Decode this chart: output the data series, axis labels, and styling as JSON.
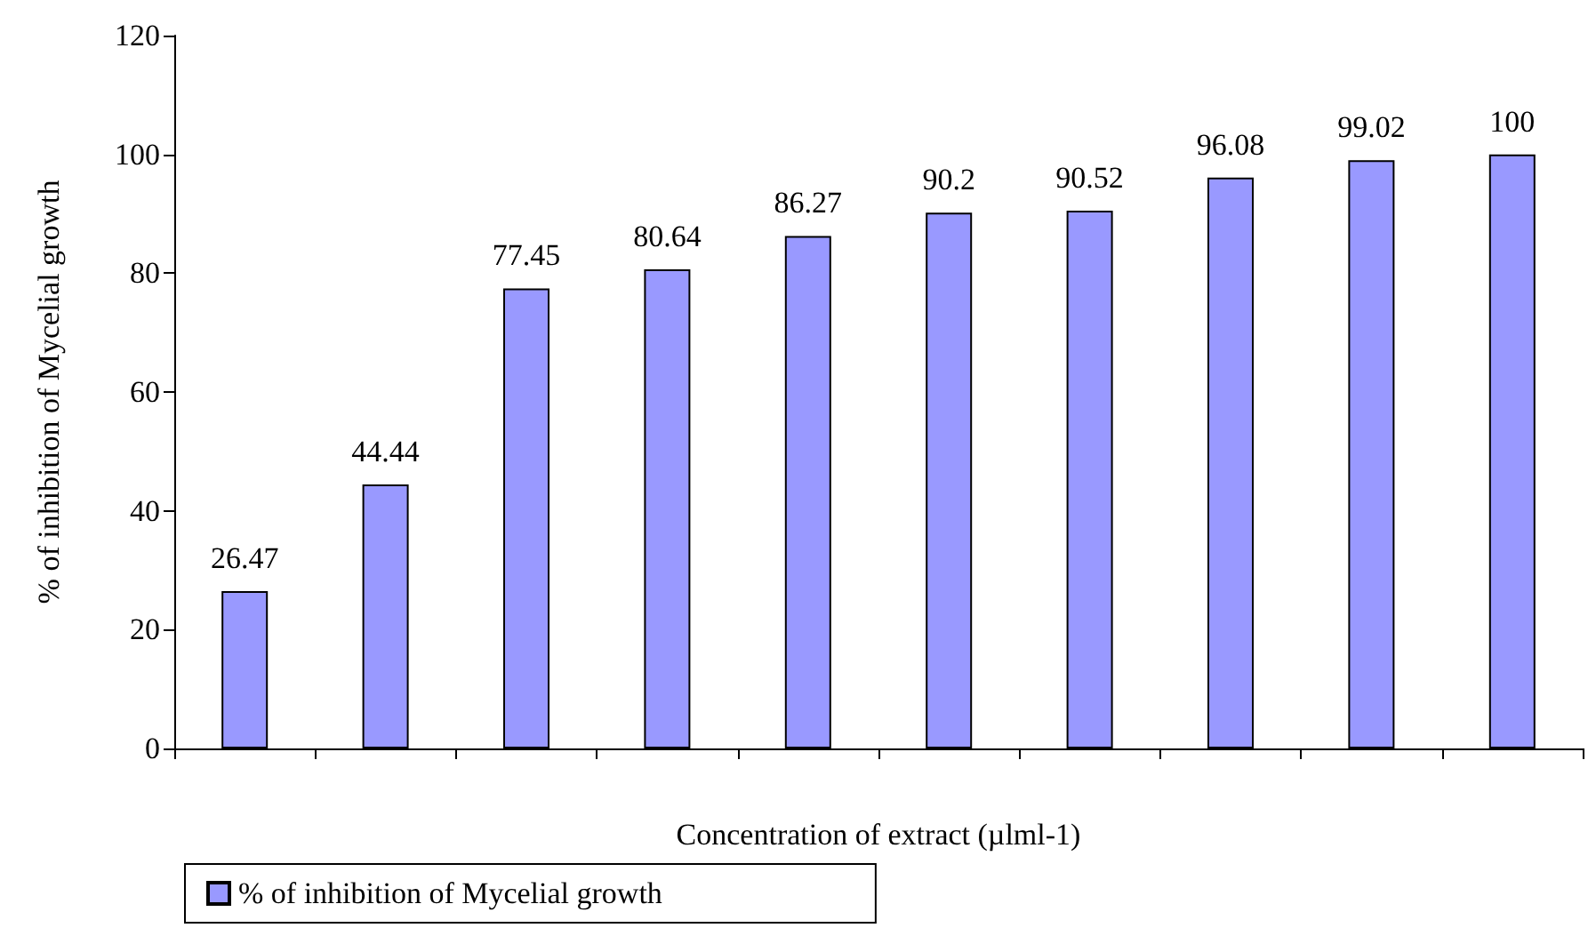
{
  "chart_data": {
    "type": "bar",
    "xlabel": "Concentration of extract (µlml-1)",
    "ylabel": "% of inhibition of Mycelial growth",
    "categories": [
      null,
      null,
      null,
      null,
      null,
      null,
      null,
      null,
      null,
      null
    ],
    "series": [
      {
        "name": "% of inhibition of Mycelial growth",
        "color": "#9999ff",
        "values": [
          26.47,
          44.44,
          77.45,
          80.64,
          86.27,
          90.2,
          90.52,
          96.08,
          99.02,
          100
        ]
      }
    ],
    "ylim": [
      0,
      120
    ],
    "yticks": [
      0,
      20,
      40,
      60,
      80,
      100,
      120
    ],
    "data_labels": true,
    "grid": false,
    "legend": "bottom"
  }
}
